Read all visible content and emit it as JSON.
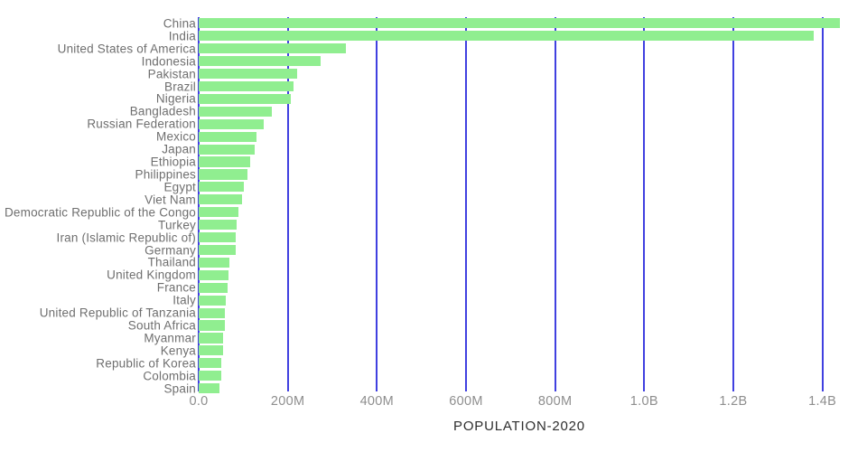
{
  "chart_data": {
    "type": "bar",
    "orientation": "horizontal",
    "title": "",
    "xlabel": "POPULATION-2020",
    "ylabel": "",
    "grid": true,
    "legend": false,
    "categories": [
      "China",
      "India",
      "United States of America",
      "Indonesia",
      "Pakistan",
      "Brazil",
      "Nigeria",
      "Bangladesh",
      "Russian Federation",
      "Mexico",
      "Japan",
      "Ethiopia",
      "Philippines",
      "Egypt",
      "Viet Nam",
      "Democratic Republic of the Congo",
      "Turkey",
      "Iran (Islamic Republic of)",
      "Germany",
      "Thailand",
      "United Kingdom",
      "France",
      "Italy",
      "United Republic of Tanzania",
      "South Africa",
      "Myanmar",
      "Kenya",
      "Republic of Korea",
      "Colombia",
      "Spain"
    ],
    "values_millions": [
      1439.3,
      1380.0,
      331.0,
      273.5,
      220.9,
      212.6,
      206.1,
      164.7,
      145.9,
      128.9,
      126.5,
      115.0,
      109.6,
      102.3,
      97.3,
      89.6,
      84.3,
      84.0,
      83.8,
      69.8,
      67.9,
      65.3,
      60.5,
      59.7,
      59.3,
      54.4,
      53.8,
      51.3,
      50.9,
      46.8
    ],
    "x_axis": {
      "max_millions": 1490,
      "ticks": [
        {
          "value_millions": 0,
          "label": "0.0"
        },
        {
          "value_millions": 200,
          "label": "200M"
        },
        {
          "value_millions": 400,
          "label": "400M"
        },
        {
          "value_millions": 600,
          "label": "600M"
        },
        {
          "value_millions": 800,
          "label": "800M"
        },
        {
          "value_millions": 1000,
          "label": "1.0B"
        },
        {
          "value_millions": 1200,
          "label": "1.2B"
        },
        {
          "value_millions": 1400,
          "label": "1.4B"
        }
      ]
    },
    "colors": {
      "bar": "#90ee90",
      "gridline": "#4040e0",
      "category_label": "#6f6f6f",
      "tick_label": "#8e8e8e",
      "axis_title": "#2e2e2e",
      "background": "#ffffff"
    }
  }
}
